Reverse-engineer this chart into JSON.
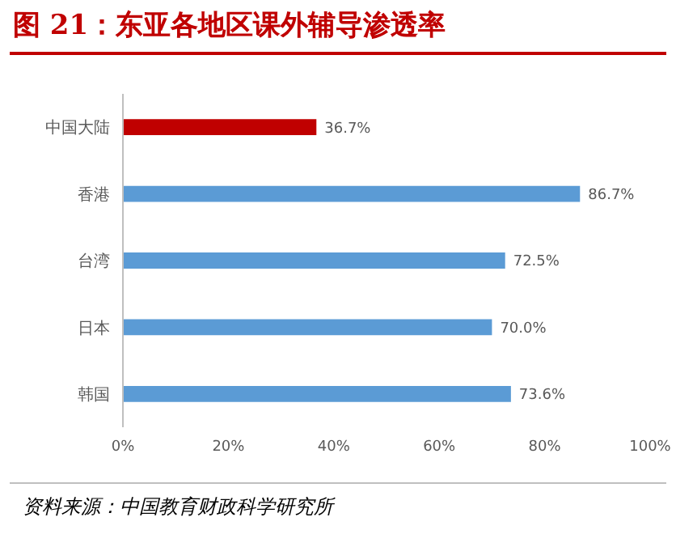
{
  "chart_data": {
    "type": "bar",
    "orientation": "horizontal",
    "title": "图 21：东亚各地区课外辅导渗透率",
    "categories": [
      "中国大陆",
      "香港",
      "台湾",
      "日本",
      "韩国"
    ],
    "values": [
      36.7,
      86.7,
      72.5,
      70.0,
      73.6
    ],
    "colors": [
      "#c00000",
      "#5b9bd5",
      "#5b9bd5",
      "#5b9bd5",
      "#5b9bd5"
    ],
    "value_labels": [
      "36.7%",
      "86.7%",
      "72.5%",
      "70.0%",
      "73.6%"
    ],
    "xlim": [
      0,
      100
    ],
    "xticks": [
      {
        "value": 0,
        "label": "0%"
      },
      {
        "value": 20,
        "label": "20%"
      },
      {
        "value": 40,
        "label": "40%"
      },
      {
        "value": 60,
        "label": "60%"
      },
      {
        "value": 80,
        "label": "80%"
      },
      {
        "value": 100,
        "label": "100%"
      }
    ],
    "grid": false,
    "legend": false,
    "annotations": [
      "资料来源：中国教育财政科学研究所"
    ]
  }
}
